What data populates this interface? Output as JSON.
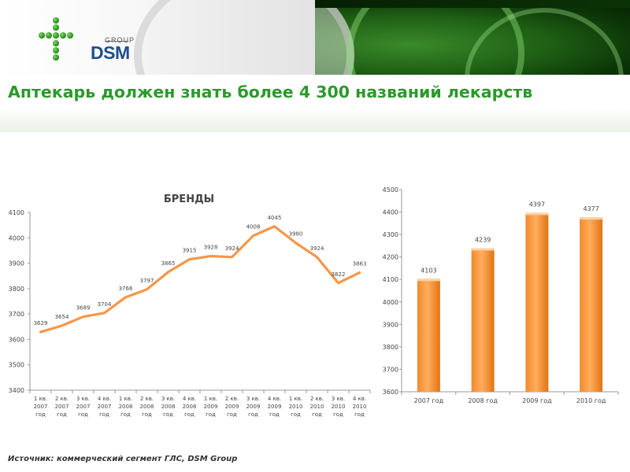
{
  "header": {
    "logo_group": "GROUP",
    "logo_brand": "DSM"
  },
  "title": "Аптекарь должен знать более 4 300 названий лекарств",
  "source": "Источник: коммерческий сегмент ГЛС, DSM Group",
  "colors": {
    "title": "#2a9a2a",
    "series": "#f79646",
    "bar_top": "#ffb061",
    "bar_bottom": "#e36c09",
    "grid": "#d9d9d9"
  },
  "chart_data": [
    {
      "type": "line",
      "title": "БРЕНДЫ",
      "xlabel": "",
      "ylabel": "",
      "ylim": [
        3400,
        4100
      ],
      "yticks": [
        "3400",
        "3500",
        "3600",
        "3700",
        "3800",
        "3900",
        "4000",
        "4100"
      ],
      "categories": [
        [
          "1 кв.",
          "2007",
          "год"
        ],
        [
          "2 кв.",
          "2007",
          "год"
        ],
        [
          "3 кв.",
          "2007",
          "год"
        ],
        [
          "4 кв.",
          "2007",
          "год"
        ],
        [
          "1 кв.",
          "2008",
          "год"
        ],
        [
          "2 кв.",
          "2008",
          "год"
        ],
        [
          "3 кв.",
          "2008",
          "год"
        ],
        [
          "4 кв.",
          "2008",
          "год"
        ],
        [
          "1 кв.",
          "2009",
          "год"
        ],
        [
          "2 кв.",
          "2009",
          "год"
        ],
        [
          "3 кв.",
          "2009",
          "год"
        ],
        [
          "4 кв.",
          "2009",
          "год"
        ],
        [
          "1 кв.",
          "2010",
          "год"
        ],
        [
          "2 кв.",
          "2010",
          "год"
        ],
        [
          "3 кв.",
          "2010",
          "год"
        ],
        [
          "4 кв.",
          "2010",
          "год"
        ]
      ],
      "values": [
        3629,
        3654,
        3689,
        3704,
        3766,
        3797,
        3865,
        3915,
        3928,
        3924,
        4008,
        4045,
        3980,
        3924,
        3822,
        3863
      ],
      "labels": [
        "3629",
        "3654",
        "3689",
        "3704",
        "3766",
        "3797",
        "3865",
        "3915",
        "3928",
        "3924",
        "4008",
        "4045",
        "3980",
        "3924",
        "3822",
        "3863"
      ],
      "grid": false,
      "legend": "none"
    },
    {
      "type": "bar",
      "title": "",
      "xlabel": "",
      "ylabel": "",
      "ylim": [
        3600,
        4500
      ],
      "yticks": [
        "3600",
        "3700",
        "3800",
        "3900",
        "4000",
        "4100",
        "4200",
        "4300",
        "4400",
        "4500"
      ],
      "categories": [
        "2007 год",
        "2008 год",
        "2009 год",
        "2010 год"
      ],
      "values": [
        4103,
        4239,
        4397,
        4377
      ],
      "labels": [
        "4103",
        "4239",
        "4397",
        "4377"
      ],
      "grid": false,
      "legend": "none"
    }
  ]
}
